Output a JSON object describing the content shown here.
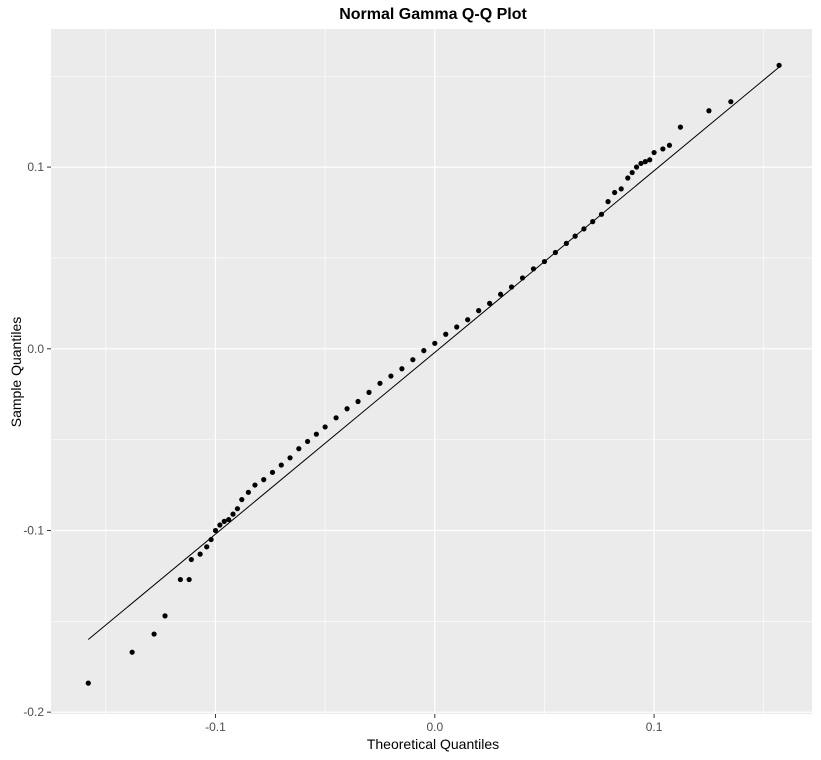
{
  "chart_data": {
    "type": "scatter",
    "title": "Normal Gamma Q-Q Plot",
    "xlabel": "Theoretical Quantiles",
    "ylabel": "Sample Quantiles",
    "xlim": [
      -0.175,
      0.172
    ],
    "ylim": [
      -0.201,
      0.176
    ],
    "x_ticks": [
      -0.1,
      0.0,
      0.1
    ],
    "x_tick_labels": [
      "-0.1",
      "0.0",
      "0.1"
    ],
    "y_ticks": [
      -0.2,
      -0.1,
      0.0,
      0.1
    ],
    "y_tick_labels": [
      "-0.2",
      "-0.1",
      "0.0",
      "0.1"
    ],
    "grid": true,
    "background": "#ebebeb",
    "point_color": "#000000",
    "reference_line": {
      "x": [
        -0.158,
        0.157
      ],
      "y": [
        -0.16,
        0.155
      ]
    },
    "points": {
      "x": [
        -0.158,
        -0.138,
        -0.128,
        -0.123,
        -0.116,
        -0.112,
        -0.111,
        -0.107,
        -0.104,
        -0.102,
        -0.1,
        -0.098,
        -0.096,
        -0.094,
        -0.092,
        -0.09,
        -0.088,
        -0.085,
        -0.082,
        -0.078,
        -0.074,
        -0.07,
        -0.066,
        -0.062,
        -0.058,
        -0.054,
        -0.05,
        -0.045,
        -0.04,
        -0.035,
        -0.03,
        -0.025,
        -0.02,
        -0.015,
        -0.01,
        -0.005,
        0.0,
        0.005,
        0.01,
        0.015,
        0.02,
        0.025,
        0.03,
        0.035,
        0.04,
        0.045,
        0.05,
        0.055,
        0.06,
        0.064,
        0.068,
        0.072,
        0.076,
        0.079,
        0.082,
        0.085,
        0.088,
        0.09,
        0.092,
        0.094,
        0.096,
        0.098,
        0.1,
        0.104,
        0.107,
        0.112,
        0.125,
        0.135,
        0.157
      ],
      "y": [
        -0.184,
        -0.167,
        -0.157,
        -0.147,
        -0.127,
        -0.127,
        -0.116,
        -0.113,
        -0.109,
        -0.105,
        -0.1,
        -0.097,
        -0.095,
        -0.094,
        -0.091,
        -0.088,
        -0.083,
        -0.079,
        -0.075,
        -0.072,
        -0.068,
        -0.064,
        -0.06,
        -0.055,
        -0.051,
        -0.047,
        -0.043,
        -0.038,
        -0.033,
        -0.029,
        -0.024,
        -0.019,
        -0.015,
        -0.011,
        -0.006,
        -0.001,
        0.003,
        0.008,
        0.012,
        0.016,
        0.021,
        0.025,
        0.03,
        0.034,
        0.039,
        0.044,
        0.048,
        0.053,
        0.058,
        0.062,
        0.066,
        0.07,
        0.074,
        0.081,
        0.086,
        0.088,
        0.094,
        0.097,
        0.1,
        0.102,
        0.103,
        0.104,
        0.108,
        0.11,
        0.112,
        0.122,
        0.131,
        0.136,
        0.156
      ]
    }
  }
}
